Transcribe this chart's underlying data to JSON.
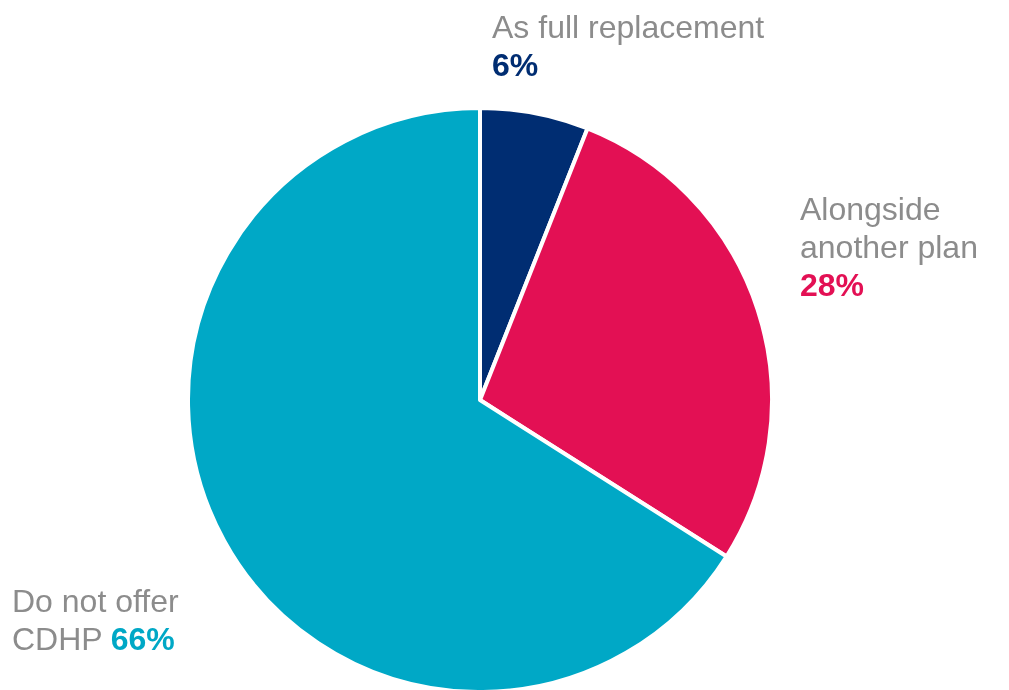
{
  "chart_data": {
    "type": "pie",
    "categories": [
      "As full replacement",
      "Alongside another plan",
      "Do not offer CDHP"
    ],
    "values": [
      6,
      28,
      66
    ],
    "colors": [
      "#002d72",
      "#e31054",
      "#00a8c6"
    ],
    "value_labels": [
      "6%",
      "28%",
      "66%"
    ]
  }
}
